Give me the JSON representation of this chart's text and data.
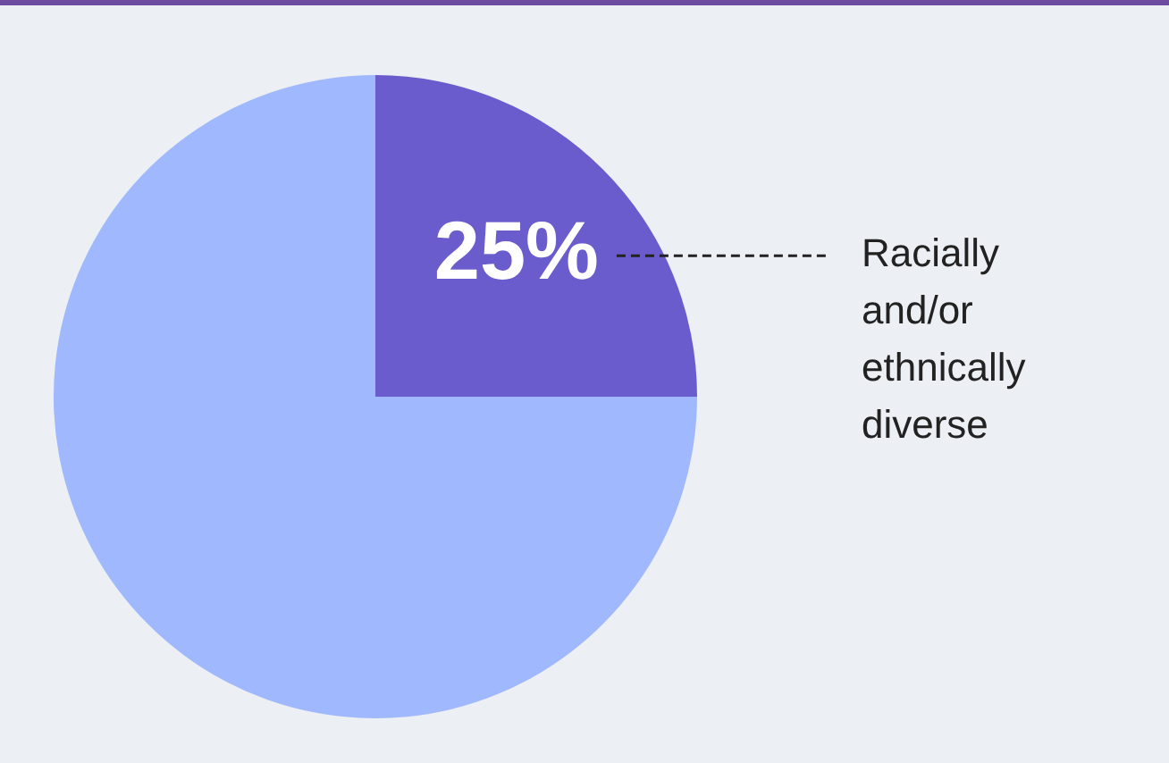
{
  "chart_data": {
    "type": "pie",
    "categories": [
      "Racially and/or ethnically diverse",
      null
    ],
    "values": [
      25,
      75
    ],
    "colors": [
      "#6a5ccc",
      "#a0b8fd"
    ],
    "value_labels": [
      "25%",
      null
    ],
    "legend": false
  }
}
